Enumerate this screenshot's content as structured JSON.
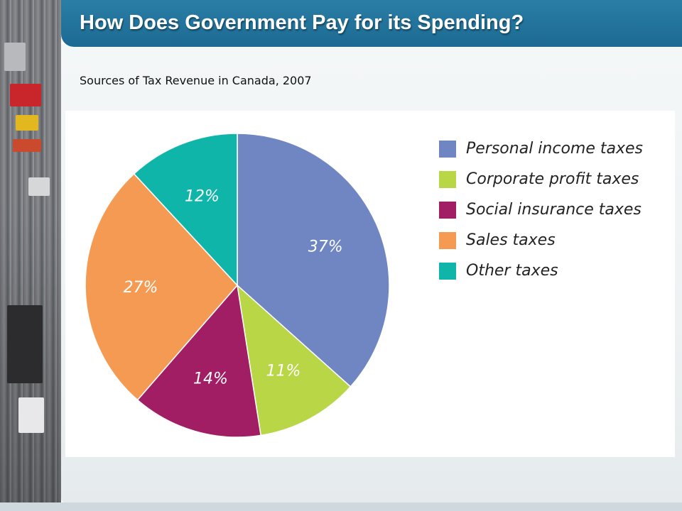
{
  "slide": {
    "title": "How Does Government Pay for its Spending?",
    "subtitle": "Sources of Tax Revenue in Canada, 2007"
  },
  "colors": {
    "title_bar": "#1f6f98",
    "title_text": "#ffffff"
  },
  "chart_data": {
    "type": "pie",
    "start": "12 o'clock",
    "direction": "clockwise",
    "legend_position": "right",
    "slices": [
      {
        "label": "Personal income taxes",
        "value": 37,
        "display": "37%",
        "color": "#6f86c3"
      },
      {
        "label": "Corporate profit taxes",
        "value": 11,
        "display": "11%",
        "color": "#b8d645"
      },
      {
        "label": "Social insurance taxes",
        "value": 14,
        "display": "14%",
        "color": "#a21e64"
      },
      {
        "label": "Sales taxes",
        "value": 27,
        "display": "27%",
        "color": "#f49a52"
      },
      {
        "label": "Other taxes",
        "value": 12,
        "display": "12%",
        "color": "#10b5a9"
      }
    ]
  }
}
